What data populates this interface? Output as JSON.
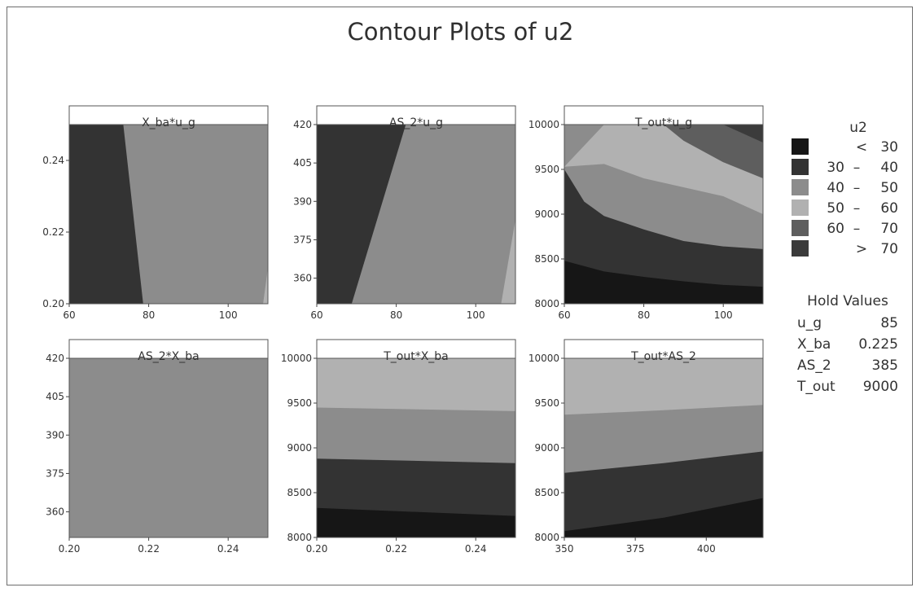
{
  "chart_data": {
    "type": "contour",
    "title": "Contour Plots of u2",
    "response": "u2",
    "legend": {
      "title": "u2",
      "placement": "right",
      "levels": [
        {
          "label": "< 30",
          "lo": "",
          "dash": "",
          "hi": "",
          "sym": "<",
          "val": "30",
          "color": "#161616"
        },
        {
          "label": "30 – 40",
          "lo": "30",
          "dash": "–",
          "hi": "40",
          "sym": "",
          "val": "",
          "color": "#333333"
        },
        {
          "label": "40 – 50",
          "lo": "40",
          "dash": "–",
          "hi": "50",
          "sym": "",
          "val": "",
          "color": "#8c8c8c"
        },
        {
          "label": "50 – 60",
          "lo": "50",
          "dash": "–",
          "hi": "60",
          "sym": "",
          "val": "",
          "color": "#b1b1b1"
        },
        {
          "label": "60 – 70",
          "lo": "60",
          "dash": "–",
          "hi": "70",
          "sym": "",
          "val": "",
          "color": "#5e5e5e"
        },
        {
          "label": "> 70",
          "lo": "",
          "dash": "",
          "hi": "",
          "sym": ">",
          "val": "70",
          "color": "#3b3b3b"
        }
      ]
    },
    "hold_values": {
      "title": "Hold Values",
      "rows": [
        {
          "name": "u_g",
          "value": "85"
        },
        {
          "name": "X_ba",
          "value": "0.225"
        },
        {
          "name": "AS_2",
          "value": "385"
        },
        {
          "name": "T_out",
          "value": "9000"
        }
      ]
    },
    "panels": [
      {
        "title": "X_ba*u_g",
        "xlim": [
          60,
          110
        ],
        "ylim": [
          0.2,
          0.25
        ],
        "xticks": [
          60,
          80,
          100
        ],
        "xtick_labels": [
          "60",
          "80",
          "100"
        ],
        "yticks": [
          0.2,
          0.22,
          0.24
        ],
        "ytick_labels": [
          "0.20",
          "0.22",
          "0.24"
        ],
        "background_level": 2,
        "regions": [
          {
            "level": 1,
            "polygon": [
              [
                60,
                0.2
              ],
              [
                78.6,
                0.2
              ],
              [
                73.6,
                0.25
              ],
              [
                60,
                0.25
              ]
            ]
          },
          {
            "level": 3,
            "polygon": [
              [
                108.8,
                0.2
              ],
              [
                110,
                0.2
              ],
              [
                110,
                0.21
              ]
            ]
          }
        ]
      },
      {
        "title": "AS_2*u_g",
        "xlim": [
          60,
          110
        ],
        "ylim": [
          350,
          420
        ],
        "xticks": [
          60,
          80,
          100
        ],
        "xtick_labels": [
          "60",
          "80",
          "100"
        ],
        "yticks": [
          360,
          375,
          390,
          405,
          420
        ],
        "ytick_labels": [
          "360",
          "375",
          "390",
          "405",
          "420"
        ],
        "background_level": 2,
        "regions": [
          {
            "level": 1,
            "polygon": [
              [
                60,
                350
              ],
              [
                68.8,
                350
              ],
              [
                82.4,
                420
              ],
              [
                60,
                420
              ]
            ]
          },
          {
            "level": 3,
            "polygon": [
              [
                106.4,
                350
              ],
              [
                110,
                350
              ],
              [
                110,
                383
              ]
            ]
          }
        ]
      },
      {
        "title": "T_out*u_g",
        "xlim": [
          60,
          110
        ],
        "ylim": [
          8000,
          10000
        ],
        "xticks": [
          60,
          80,
          100
        ],
        "xtick_labels": [
          "60",
          "80",
          "100"
        ],
        "yticks": [
          8000,
          8500,
          9000,
          9500,
          10000
        ],
        "ytick_labels": [
          "8000",
          "8500",
          "9000",
          "9500",
          "10000"
        ],
        "background_level": 2,
        "regions": [
          {
            "level": 3,
            "polygon": [
              [
                60,
                9530
              ],
              [
                70,
                10000
              ],
              [
                110,
                10000
              ],
              [
                110,
                9000
              ],
              [
                100,
                9200
              ],
              [
                90,
                9300
              ],
              [
                80,
                9400
              ],
              [
                70,
                9560
              ],
              [
                60,
                9530
              ]
            ]
          },
          {
            "level": 4,
            "polygon": [
              [
                85,
                10000
              ],
              [
                110,
                10000
              ],
              [
                110,
                9400
              ],
              [
                100,
                9580
              ],
              [
                90,
                9820
              ]
            ]
          },
          {
            "level": 5,
            "polygon": [
              [
                100,
                10000
              ],
              [
                110,
                10000
              ],
              [
                110,
                9800
              ]
            ]
          },
          {
            "level": 1,
            "polygon": [
              [
                60,
                8000
              ],
              [
                60,
                9500
              ],
              [
                65,
                9140
              ],
              [
                70,
                8980
              ],
              [
                80,
                8830
              ],
              [
                90,
                8700
              ],
              [
                100,
                8640
              ],
              [
                110,
                8610
              ],
              [
                110,
                8000
              ]
            ]
          },
          {
            "level": 0,
            "polygon": [
              [
                60,
                8000
              ],
              [
                60,
                8480
              ],
              [
                70,
                8360
              ],
              [
                80,
                8300
              ],
              [
                90,
                8250
              ],
              [
                100,
                8210
              ],
              [
                110,
                8190
              ],
              [
                110,
                8000
              ]
            ]
          }
        ]
      },
      {
        "title": "AS_2*X_ba",
        "xlim": [
          0.2,
          0.25
        ],
        "ylim": [
          350,
          420
        ],
        "xticks": [
          0.2,
          0.22,
          0.24
        ],
        "xtick_labels": [
          "0.20",
          "0.22",
          "0.24"
        ],
        "yticks": [
          360,
          375,
          390,
          405,
          420
        ],
        "ytick_labels": [
          "360",
          "375",
          "390",
          "405",
          "420"
        ],
        "background_level": 2,
        "regions": []
      },
      {
        "title": "T_out*X_ba",
        "xlim": [
          0.2,
          0.25
        ],
        "ylim": [
          8000,
          10000
        ],
        "xticks": [
          0.2,
          0.22,
          0.24
        ],
        "xtick_labels": [
          "0.20",
          "0.22",
          "0.24"
        ],
        "yticks": [
          8000,
          8500,
          9000,
          9500,
          10000
        ],
        "ytick_labels": [
          "8000",
          "8500",
          "9000",
          "9500",
          "10000"
        ],
        "background_level": 3,
        "regions": [
          {
            "level": 2,
            "polygon": [
              [
                0.2,
                8000
              ],
              [
                0.2,
                9450
              ],
              [
                0.25,
                9410
              ],
              [
                0.25,
                8000
              ]
            ]
          },
          {
            "level": 1,
            "polygon": [
              [
                0.2,
                8000
              ],
              [
                0.2,
                8880
              ],
              [
                0.25,
                8830
              ],
              [
                0.25,
                8000
              ]
            ]
          },
          {
            "level": 0,
            "polygon": [
              [
                0.2,
                8000
              ],
              [
                0.2,
                8330
              ],
              [
                0.25,
                8240
              ],
              [
                0.25,
                8000
              ]
            ]
          }
        ]
      },
      {
        "title": "T_out*AS_2",
        "xlim": [
          350,
          420
        ],
        "ylim": [
          8000,
          10000
        ],
        "xticks": [
          350,
          375,
          400
        ],
        "xtick_labels": [
          "350",
          "375",
          "400"
        ],
        "yticks": [
          8000,
          8500,
          9000,
          9500,
          10000
        ],
        "ytick_labels": [
          "8000",
          "8500",
          "9000",
          "9500",
          "10000"
        ],
        "background_level": 3,
        "regions": [
          {
            "level": 2,
            "polygon": [
              [
                350,
                8000
              ],
              [
                350,
                9370
              ],
              [
                385,
                9420
              ],
              [
                420,
                9480
              ],
              [
                420,
                8000
              ]
            ]
          },
          {
            "level": 1,
            "polygon": [
              [
                350,
                8000
              ],
              [
                350,
                8720
              ],
              [
                385,
                8830
              ],
              [
                420,
                8960
              ],
              [
                420,
                8000
              ]
            ]
          },
          {
            "level": 0,
            "polygon": [
              [
                350,
                8000
              ],
              [
                350,
                8070
              ],
              [
                385,
                8220
              ],
              [
                420,
                8440
              ],
              [
                420,
                8000
              ]
            ]
          }
        ]
      }
    ]
  }
}
